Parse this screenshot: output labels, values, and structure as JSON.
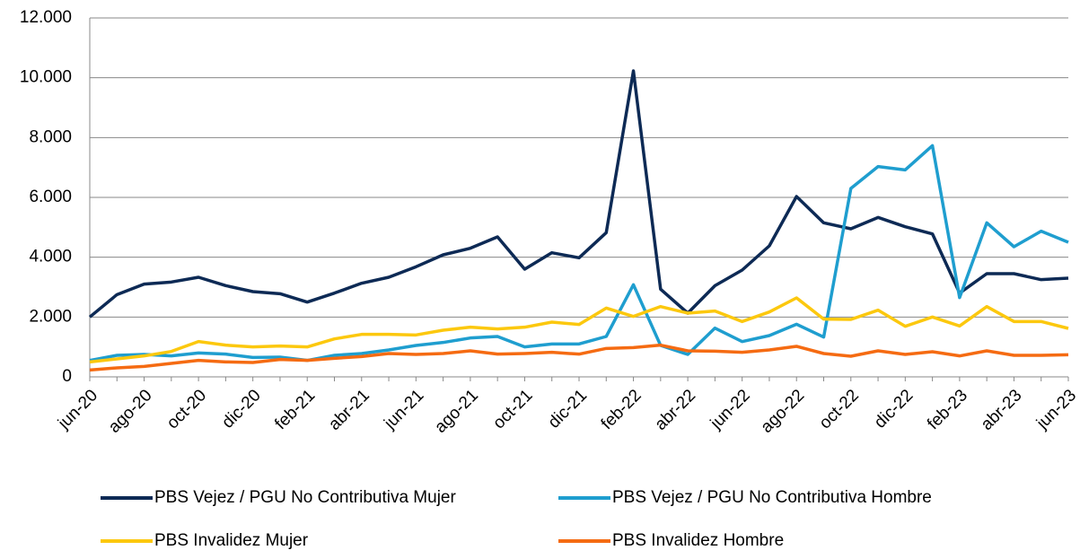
{
  "chart_data": {
    "type": "line",
    "categories": [
      "jun-20",
      null,
      "ago-20",
      null,
      "oct-20",
      null,
      "dic-20",
      null,
      "feb-21",
      null,
      "abr-21",
      null,
      "jun-21",
      null,
      "ago-21",
      null,
      "oct-21",
      null,
      "dic-21",
      null,
      "feb-22",
      null,
      "abr-22",
      null,
      "jun-22",
      null,
      "ago-22",
      null,
      "oct-22",
      null,
      "dic-22",
      null,
      "feb-23",
      null,
      "abr-23",
      null,
      "jun-23"
    ],
    "series": [
      {
        "name": "PBS Vejez / PGU No Contributiva Mujer",
        "color": "#0d2a55",
        "values": [
          2000,
          2750,
          3100,
          3170,
          3330,
          3050,
          2850,
          2780,
          2500,
          2800,
          3130,
          3330,
          3680,
          4080,
          4300,
          4680,
          3600,
          4150,
          3980,
          4820,
          10230,
          2930,
          2130,
          3050,
          3570,
          4380,
          6030,
          5150,
          4950,
          5330,
          5020,
          4780,
          2800,
          3450,
          3450,
          3250,
          3300
        ]
      },
      {
        "name": "PBS Vejez / PGU No Contributiva Hombre",
        "color": "#1f9ecf",
        "values": [
          550,
          720,
          750,
          700,
          800,
          760,
          650,
          660,
          550,
          720,
          780,
          900,
          1050,
          1150,
          1300,
          1350,
          1000,
          1100,
          1100,
          1350,
          3080,
          1050,
          750,
          1630,
          1180,
          1380,
          1760,
          1330,
          6300,
          7030,
          6920,
          7730,
          2650,
          5150,
          4350,
          4870,
          4500
        ]
      },
      {
        "name": "PBS Invalidez Mujer",
        "color": "#fcc80e",
        "values": [
          500,
          600,
          700,
          850,
          1180,
          1060,
          1000,
          1030,
          1000,
          1270,
          1420,
          1420,
          1400,
          1560,
          1660,
          1600,
          1660,
          1830,
          1750,
          2300,
          2020,
          2350,
          2130,
          2200,
          1850,
          2170,
          2640,
          1930,
          1920,
          2230,
          1690,
          2000,
          1700,
          2350,
          1850,
          1850,
          1620
        ]
      },
      {
        "name": "PBS Invalidez Hombre",
        "color": "#f56b12",
        "values": [
          230,
          300,
          350,
          450,
          550,
          500,
          480,
          580,
          550,
          620,
          680,
          780,
          750,
          780,
          870,
          760,
          780,
          820,
          760,
          950,
          980,
          1060,
          870,
          860,
          820,
          900,
          1020,
          780,
          690,
          870,
          750,
          840,
          700,
          870,
          720,
          720,
          740
        ]
      }
    ],
    "ylim": [
      0,
      12000
    ],
    "yticks": [
      0,
      {
        "value": 2000,
        "label": "2.000"
      },
      {
        "value": 4000,
        "label": "4.000"
      },
      {
        "value": 6000,
        "label": "6.000"
      },
      {
        "value": 8000,
        "label": "8.000"
      },
      {
        "value": 10000,
        "label": "10.000"
      },
      {
        "value": 12000,
        "label": "12.000"
      }
    ],
    "grid": true
  }
}
